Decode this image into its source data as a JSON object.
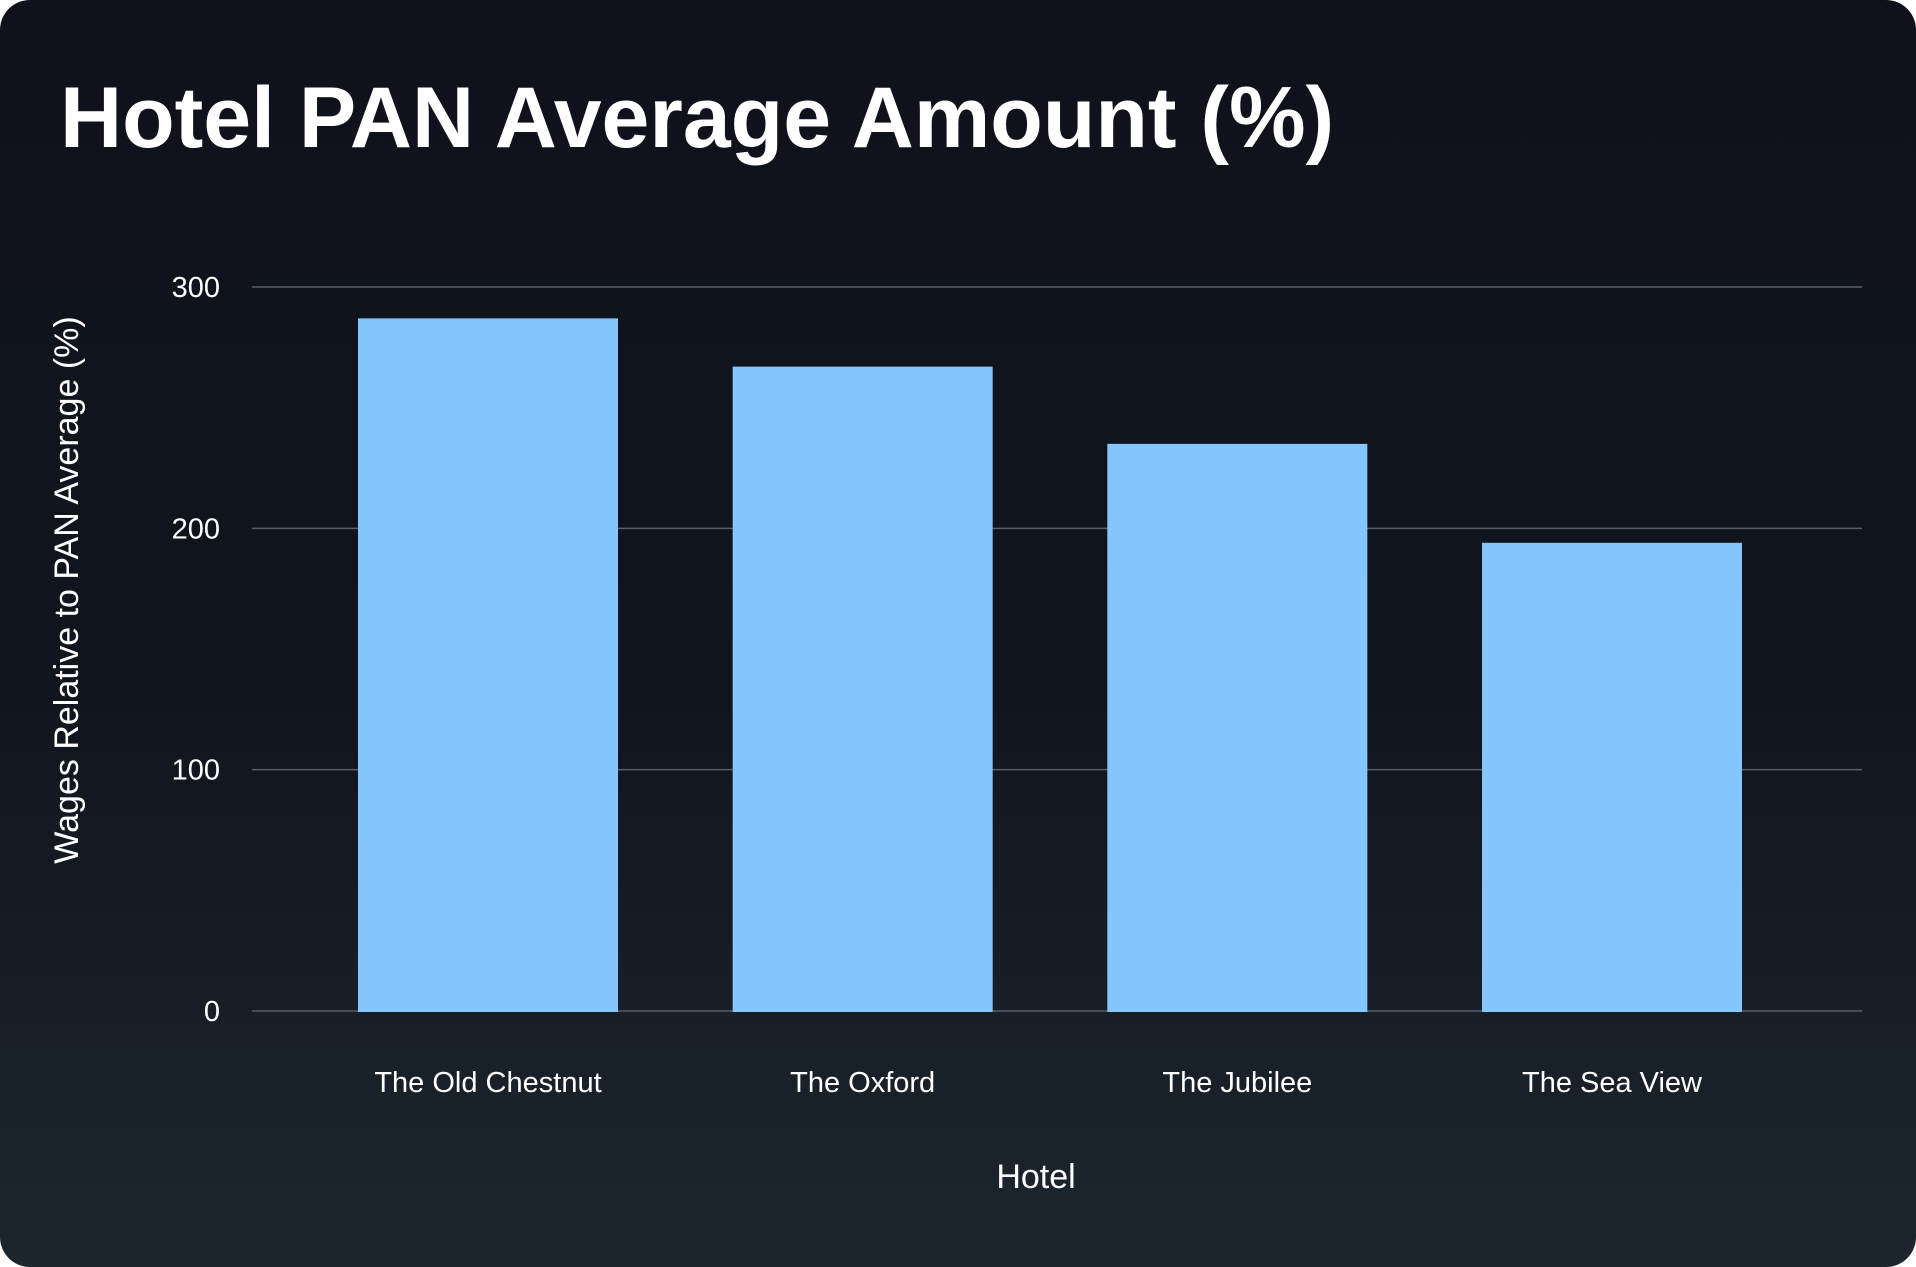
{
  "chart_data": {
    "type": "bar",
    "title": "Hotel PAN Average Amount (%)",
    "xlabel": "Hotel",
    "ylabel": "Wages Relative to PAN Average (%)",
    "categories": [
      "The Old Chestnut",
      "The Oxford",
      "The Jubilee",
      "The Sea View"
    ],
    "values": [
      287,
      267,
      235,
      194
    ],
    "ylim": [
      0,
      300
    ],
    "yticks": [
      0,
      100,
      200,
      300
    ],
    "grid": true,
    "legend": "none",
    "colors": {
      "bar": "#85c7fd",
      "grid": "#5a5f66",
      "text": "#ffffff"
    }
  }
}
